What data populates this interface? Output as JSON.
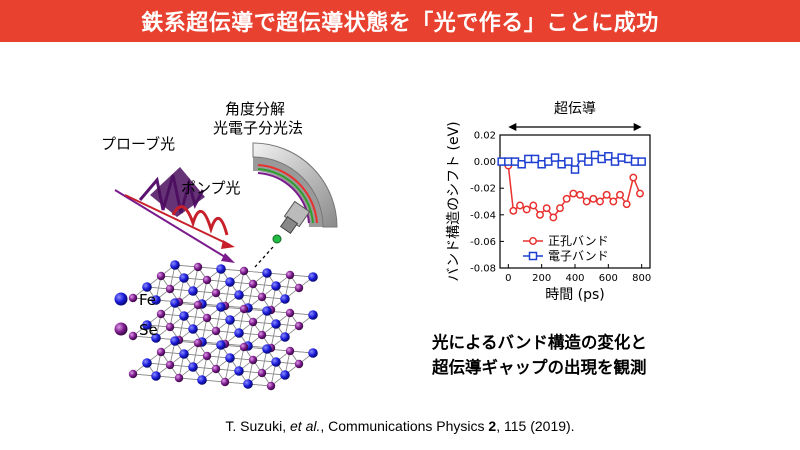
{
  "title": "鉄系超伝導で超伝導状態を「光で作る」ことに成功",
  "illustration": {
    "analyzer_label_line1": "角度分解",
    "analyzer_label_line2": "光電子分光法",
    "probe_label": "プローブ光",
    "pump_label": "ポンプ光",
    "legend": [
      {
        "symbol": "Fe",
        "color": "#1a1ad9"
      },
      {
        "symbol": "Se",
        "color": "#7a1a8c"
      }
    ]
  },
  "chart_data": {
    "type": "scatter",
    "xlabel": "時間 (ps)",
    "ylabel": "バンド構造のシフト (eV)",
    "xlim": [
      -50,
      850
    ],
    "ylim": [
      -0.08,
      0.02
    ],
    "xticks": [
      0,
      200,
      400,
      600,
      800
    ],
    "xtick_labels": [
      "0",
      "200",
      "400",
      "600",
      "800"
    ],
    "yticks": [
      0.02,
      0.0,
      -0.02,
      -0.04,
      -0.06,
      -0.08
    ],
    "ytick_labels": [
      "0.02",
      "0.00",
      "-0.02",
      "-0.04",
      "-0.06",
      "-0.08"
    ],
    "annotation": "超伝導",
    "annotation_range": [
      0,
      800
    ],
    "legend_position": "bottom-left",
    "series": [
      {
        "name": "正孔バンド",
        "marker": "circle",
        "color": "#e8312f",
        "x": [
          -40,
          0,
          30,
          70,
          110,
          150,
          190,
          230,
          270,
          310,
          350,
          390,
          430,
          470,
          510,
          550,
          590,
          630,
          670,
          710,
          750,
          790
        ],
        "y": [
          0.0,
          -0.003,
          -0.037,
          -0.033,
          -0.036,
          -0.033,
          -0.04,
          -0.035,
          -0.042,
          -0.035,
          -0.028,
          -0.024,
          -0.025,
          -0.03,
          -0.028,
          -0.03,
          -0.025,
          -0.03,
          -0.025,
          -0.032,
          -0.012,
          -0.024
        ]
      },
      {
        "name": "電子バンド",
        "marker": "square",
        "color": "#1f3fd0",
        "x": [
          -40,
          0,
          40,
          80,
          120,
          160,
          200,
          240,
          280,
          320,
          360,
          400,
          440,
          480,
          520,
          560,
          600,
          640,
          680,
          720,
          760,
          800
        ],
        "y": [
          0.0,
          0.0,
          0.0,
          -0.002,
          0.002,
          0.002,
          -0.002,
          0.0,
          0.003,
          -0.002,
          0.0,
          -0.006,
          0.003,
          0.0,
          0.005,
          0.002,
          0.004,
          0.0,
          0.003,
          0.002,
          0.0,
          0.0
        ]
      }
    ]
  },
  "summary_line1": "光によるバンド構造の変化と",
  "summary_line2": "超伝導ギャップの出現を観測",
  "citation": {
    "authors": "T. Suzuki,",
    "etal": "et al.",
    "journal": ", Communications Physics",
    "volume": "2",
    "pages_year": ", 115  (2019)."
  }
}
